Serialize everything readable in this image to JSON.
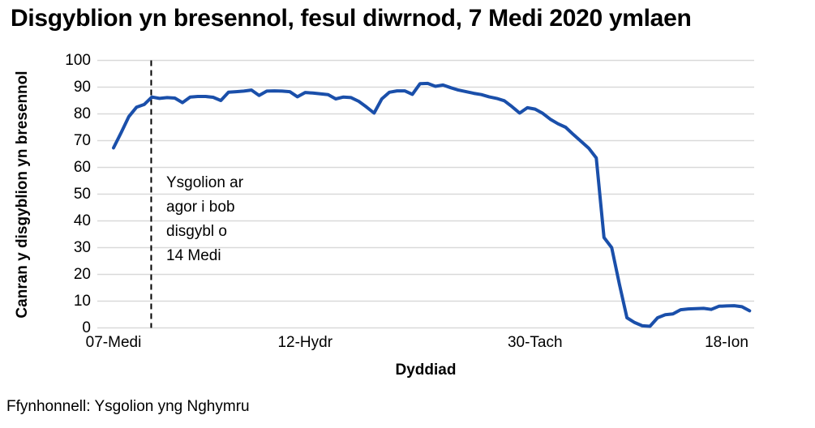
{
  "title": "Disgyblion yn bresennol, fesul diwrnod, 7 Medi 2020 ymlaen",
  "source": "Ffynhonnell: Ysgolion yng Nghymru",
  "chart_data": {
    "type": "line",
    "title": "Disgyblion yn bresennol, fesul diwrnod, 7 Medi 2020 ymlaen",
    "xlabel": "Dyddiad",
    "ylabel": "Canran y disgyblion yn bresennol",
    "ylim": [
      0,
      100
    ],
    "yticks": [
      0,
      10,
      20,
      30,
      40,
      50,
      60,
      70,
      80,
      90,
      100
    ],
    "xticks": [
      {
        "label": "07-Medi",
        "day": 0
      },
      {
        "label": "12-Hydr",
        "day": 25
      },
      {
        "label": "30-Tach",
        "day": 55
      },
      {
        "label": "18-Ion",
        "day": 80
      }
    ],
    "grid": "horizontal-only",
    "legend": "none",
    "colors": {
      "line": "#1a4faa",
      "gridline": "#d9d9d9",
      "reference_line": "#000000",
      "text": "#000000"
    },
    "annotation": {
      "text": "Ysgolion ar\nagor i bob\ndisgybl o\n14 Medi"
    },
    "reference_line": {
      "style": "vertical-dashed",
      "day": 5,
      "meaning": "14 Medi"
    },
    "x_unit": "school day index from 07-Medi-2020",
    "series": [
      {
        "name": "Canran y disgyblion yn bresennol",
        "values": [
          67.3,
          73.0,
          79.0,
          82.5,
          83.5,
          86.3,
          85.8,
          86.1,
          85.9,
          84.2,
          86.3,
          86.5,
          86.5,
          86.2,
          85.0,
          88.1,
          88.3,
          88.5,
          88.9,
          86.9,
          88.5,
          88.6,
          88.5,
          88.3,
          86.4,
          88.0,
          87.8,
          87.5,
          87.2,
          85.6,
          86.3,
          86.1,
          84.7,
          82.6,
          80.3,
          85.6,
          88.1,
          88.6,
          88.6,
          87.3,
          91.3,
          91.4,
          90.3,
          90.8,
          89.8,
          88.9,
          88.3,
          87.7,
          87.2,
          86.4,
          85.8,
          84.9,
          82.7,
          80.3,
          82.3,
          81.8,
          80.2,
          78.0,
          76.3,
          75.0,
          72.3,
          69.8,
          67.2,
          63.5,
          33.8,
          30.0,
          16.5,
          3.8,
          2.0,
          0.8,
          0.6,
          3.8,
          4.9,
          5.2,
          6.8,
          7.1,
          7.2,
          7.3,
          6.9,
          8.1,
          8.2,
          8.3,
          7.9,
          6.4
        ]
      }
    ]
  }
}
